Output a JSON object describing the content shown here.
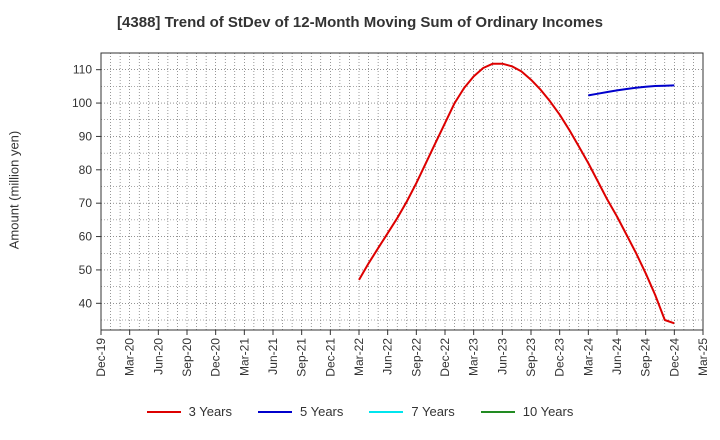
{
  "chart_data": {
    "type": "line",
    "title": "[4388]  Trend of StDev of 12-Month Moving Sum of Ordinary Incomes",
    "xlabel": "",
    "ylabel": "Amount (million yen)",
    "x_ticks": [
      "Dec-19",
      "Mar-20",
      "Jun-20",
      "Sep-20",
      "Dec-20",
      "Mar-21",
      "Jun-21",
      "Sep-21",
      "Dec-21",
      "Mar-22",
      "Jun-22",
      "Sep-22",
      "Dec-22",
      "Mar-23",
      "Jun-23",
      "Sep-23",
      "Dec-23",
      "Mar-24",
      "Jun-24",
      "Sep-24",
      "Dec-24",
      "Mar-25"
    ],
    "y_ticks": [
      40,
      50,
      60,
      70,
      80,
      90,
      100,
      110
    ],
    "ylim": [
      32,
      115
    ],
    "grid": true,
    "legend_position": "bottom",
    "series": [
      {
        "name": "3 Years",
        "color": "#dd0000",
        "points": [
          [
            "Mar-22",
            47
          ],
          [
            "Apr-22",
            52
          ],
          [
            "May-22",
            56.5
          ],
          [
            "Jun-22",
            61
          ],
          [
            "Jul-22",
            65.5
          ],
          [
            "Aug-22",
            70.5
          ],
          [
            "Sep-22",
            76
          ],
          [
            "Oct-22",
            82
          ],
          [
            "Nov-22",
            88
          ],
          [
            "Dec-22",
            94
          ],
          [
            "Jan-23",
            100
          ],
          [
            "Feb-23",
            104.5
          ],
          [
            "Mar-23",
            108
          ],
          [
            "Apr-23",
            110.5
          ],
          [
            "May-23",
            111.8
          ],
          [
            "Jun-23",
            111.8
          ],
          [
            "Jul-23",
            111
          ],
          [
            "Aug-23",
            109.5
          ],
          [
            "Sep-23",
            107
          ],
          [
            "Oct-23",
            104
          ],
          [
            "Nov-23",
            100.5
          ],
          [
            "Dec-23",
            96.5
          ],
          [
            "Jan-24",
            92
          ],
          [
            "Feb-24",
            87
          ],
          [
            "Mar-24",
            82
          ],
          [
            "Apr-24",
            76.5
          ],
          [
            "May-24",
            71
          ],
          [
            "Jun-24",
            66
          ],
          [
            "Jul-24",
            60.5
          ],
          [
            "Aug-24",
            55
          ],
          [
            "Sep-24",
            49
          ],
          [
            "Oct-24",
            42.5
          ],
          [
            "Nov-24",
            35
          ],
          [
            "Dec-24",
            34
          ]
        ]
      },
      {
        "name": "5 Years",
        "color": "#0000cc",
        "points": [
          [
            "Mar-24",
            102.3
          ],
          [
            "Apr-24",
            102.8
          ],
          [
            "May-24",
            103.3
          ],
          [
            "Jun-24",
            103.8
          ],
          [
            "Jul-24",
            104.2
          ],
          [
            "Aug-24",
            104.6
          ],
          [
            "Sep-24",
            104.9
          ],
          [
            "Oct-24",
            105.1
          ],
          [
            "Nov-24",
            105.2
          ],
          [
            "Dec-24",
            105.3
          ]
        ]
      },
      {
        "name": "7 Years",
        "color": "#00e5ee",
        "points": []
      },
      {
        "name": "10 Years",
        "color": "#228b22",
        "points": []
      }
    ]
  }
}
